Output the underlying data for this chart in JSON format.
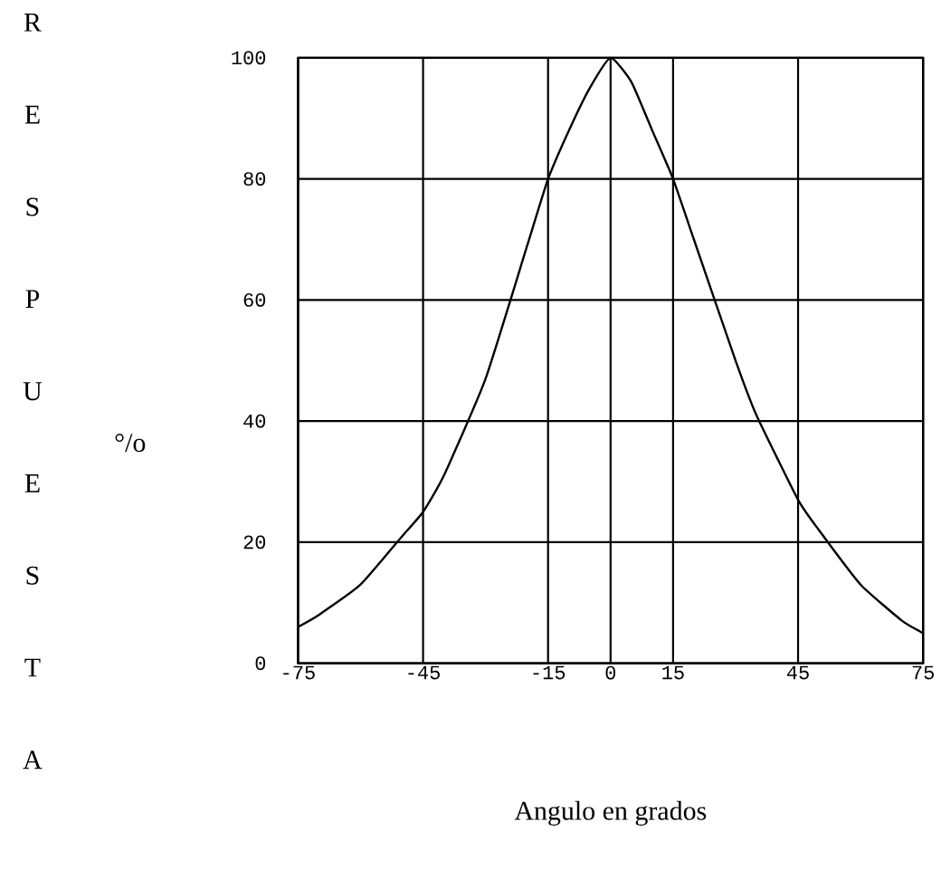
{
  "chart_data": {
    "type": "line",
    "xlabel": "Angulo en grados",
    "ylabel": "RESPUESTA",
    "annotations": [
      "°/o"
    ],
    "x": [
      -75,
      -70,
      -60,
      -50,
      -45,
      -40,
      -30,
      -20,
      -15,
      -10,
      -5,
      0,
      5,
      10,
      15,
      20,
      30,
      35,
      45,
      50,
      60,
      70,
      75
    ],
    "values": [
      6,
      8,
      13,
      21,
      25,
      31,
      47,
      69,
      80,
      88,
      95,
      100,
      96,
      88,
      80,
      70,
      50,
      41,
      27,
      22,
      13,
      7,
      5
    ],
    "color": "#000000",
    "xlim": [
      -75,
      75
    ],
    "ylim": [
      0,
      100
    ],
    "xticks": [
      -75,
      -45,
      -15,
      0,
      15,
      45,
      75
    ],
    "yticks": [
      0,
      20,
      40,
      60,
      80,
      100
    ],
    "grid": true
  }
}
